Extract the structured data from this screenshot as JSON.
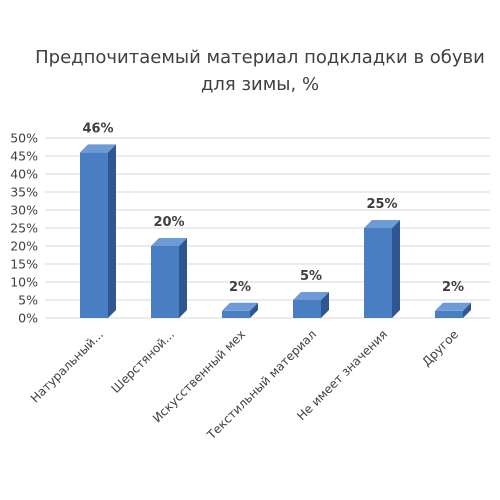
{
  "chart_data": {
    "type": "bar",
    "title_lines": [
      "Предпочитаемый материал подкладки в обуви",
      "для зимы, %"
    ],
    "categories": [
      "Натуральный...",
      "Шерстяной...",
      "Искусственный мех",
      "Текстильный материал",
      "Не имеет значения",
      "Другое"
    ],
    "values": [
      46,
      20,
      2,
      5,
      25,
      2
    ],
    "data_labels": [
      "46%",
      "20%",
      "2%",
      "5%",
      "25%",
      "2%"
    ],
    "y_ticks": [
      "0%",
      "5%",
      "10%",
      "15%",
      "20%",
      "25%",
      "30%",
      "35%",
      "40%",
      "45%",
      "50%"
    ],
    "ylim": [
      0,
      50
    ],
    "grid": true,
    "bar_colors": {
      "front": "#4a7ec2",
      "side": "#2f5690",
      "top": "#6e9bd6"
    },
    "legend": "none"
  }
}
